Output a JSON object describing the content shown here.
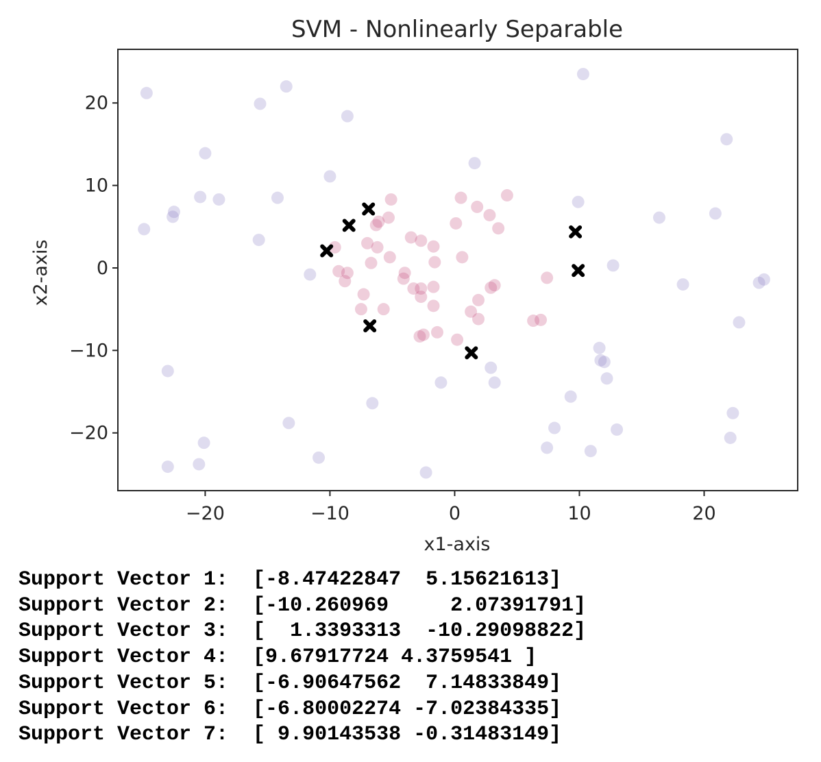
{
  "chart_data": {
    "type": "scatter",
    "title": "SVM - Nonlinearly Separable",
    "xlabel": "x1-axis",
    "ylabel": "x2-axis",
    "xlim": [
      -27,
      27.5
    ],
    "ylim": [
      -27,
      26.5
    ],
    "xticks": [
      -20,
      -10,
      0,
      10,
      20
    ],
    "yticks": [
      -20,
      -10,
      0,
      10,
      20
    ],
    "xtick_labels": [
      "−20",
      "−10",
      "0",
      "10",
      "20"
    ],
    "ytick_labels": [
      "−20",
      "−10",
      "0",
      "10",
      "20"
    ],
    "grid": false,
    "colors": {
      "outer": "#8b82c7",
      "inner": "#c7507e",
      "support": "#000000",
      "text": "#262626"
    },
    "series": [
      {
        "class": "outer",
        "points": [
          [
            -24.7,
            21.2
          ],
          [
            -24.9,
            4.7
          ],
          [
            -22.5,
            6.8
          ],
          [
            -22.6,
            6.2
          ],
          [
            -23.0,
            -12.5
          ],
          [
            -23.0,
            -24.1
          ],
          [
            -20.4,
            8.6
          ],
          [
            -20.0,
            13.9
          ],
          [
            -20.5,
            -23.8
          ],
          [
            -20.1,
            -21.2
          ],
          [
            -18.9,
            8.3
          ],
          [
            -15.6,
            19.9
          ],
          [
            -15.7,
            3.4
          ],
          [
            -14.2,
            8.5
          ],
          [
            -13.5,
            22.0
          ],
          [
            -13.3,
            -18.8
          ],
          [
            -11.6,
            -0.8
          ],
          [
            -10.9,
            -23.0
          ],
          [
            -10.0,
            11.1
          ],
          [
            -8.6,
            18.4
          ],
          [
            -6.6,
            -16.4
          ],
          [
            -2.3,
            -24.8
          ],
          [
            -1.1,
            -13.9
          ],
          [
            1.6,
            12.7
          ],
          [
            2.9,
            -12.1
          ],
          [
            3.2,
            -13.9
          ],
          [
            9.3,
            -15.6
          ],
          [
            8.0,
            -19.4
          ],
          [
            7.4,
            -21.8
          ],
          [
            9.9,
            8.0
          ],
          [
            10.3,
            23.5
          ],
          [
            10.9,
            -22.2
          ],
          [
            11.6,
            -9.7
          ],
          [
            11.7,
            -11.2
          ],
          [
            12.0,
            -11.4
          ],
          [
            12.2,
            -13.4
          ],
          [
            12.7,
            0.3
          ],
          [
            13.0,
            -19.6
          ],
          [
            16.4,
            6.1
          ],
          [
            18.3,
            -2.0
          ],
          [
            20.9,
            6.6
          ],
          [
            21.8,
            15.6
          ],
          [
            22.1,
            -20.6
          ],
          [
            22.3,
            -17.6
          ],
          [
            22.8,
            -6.6
          ],
          [
            24.4,
            -1.8
          ],
          [
            24.8,
            -1.4
          ]
        ]
      },
      {
        "class": "inner",
        "points": [
          [
            -9.6,
            2.5
          ],
          [
            -9.3,
            -0.4
          ],
          [
            -8.8,
            -1.6
          ],
          [
            -8.6,
            -0.6
          ],
          [
            -7.3,
            -3.2
          ],
          [
            -7.0,
            3.0
          ],
          [
            -7.5,
            -5.0
          ],
          [
            -6.7,
            0.6
          ],
          [
            -6.2,
            2.5
          ],
          [
            -6.3,
            5.2
          ],
          [
            -6.1,
            5.6
          ],
          [
            -5.7,
            -5.0
          ],
          [
            -5.1,
            8.3
          ],
          [
            -5.3,
            6.1
          ],
          [
            -5.2,
            1.3
          ],
          [
            -4.0,
            -0.6
          ],
          [
            -4.1,
            -1.3
          ],
          [
            -3.5,
            3.7
          ],
          [
            -3.3,
            -2.5
          ],
          [
            -2.7,
            3.3
          ],
          [
            -2.7,
            -3.5
          ],
          [
            -2.7,
            -2.5
          ],
          [
            -2.8,
            -8.3
          ],
          [
            -2.5,
            -8.1
          ],
          [
            -1.7,
            2.6
          ],
          [
            -1.6,
            0.7
          ],
          [
            -1.7,
            -2.3
          ],
          [
            -1.7,
            -4.6
          ],
          [
            -1.4,
            -7.8
          ],
          [
            0.5,
            8.5
          ],
          [
            0.1,
            5.4
          ],
          [
            0.6,
            1.3
          ],
          [
            0.2,
            -8.7
          ],
          [
            1.3,
            -5.3
          ],
          [
            1.9,
            -3.9
          ],
          [
            1.9,
            -6.2
          ],
          [
            1.8,
            7.4
          ],
          [
            2.8,
            6.4
          ],
          [
            2.9,
            -2.4
          ],
          [
            3.2,
            -2.1
          ],
          [
            3.5,
            4.8
          ],
          [
            4.2,
            8.8
          ],
          [
            6.3,
            -6.4
          ],
          [
            6.9,
            -6.3
          ],
          [
            7.4,
            -1.2
          ]
        ]
      },
      {
        "class": "support",
        "points": [
          [
            -8.47422847,
            5.15621613
          ],
          [
            -10.260969,
            2.07391791
          ],
          [
            1.3393313,
            -10.29098822
          ],
          [
            9.67917724,
            4.3759541
          ],
          [
            -6.90647562,
            7.14833849
          ],
          [
            -6.80002274,
            -7.02384335
          ],
          [
            9.90143538,
            -0.31483149
          ]
        ]
      }
    ]
  },
  "output": {
    "lines": [
      "Support Vector 1:  [-8.47422847  5.15621613]",
      "Support Vector 2:  [-10.260969     2.07391791]",
      "Support Vector 3:  [  1.3393313  -10.29098822]",
      "Support Vector 4:  [9.67917724 4.3759541 ]",
      "Support Vector 5:  [-6.90647562  7.14833849]",
      "Support Vector 6:  [-6.80002274 -7.02384335]",
      "Support Vector 7:  [ 9.90143538 -0.31483149]"
    ]
  }
}
